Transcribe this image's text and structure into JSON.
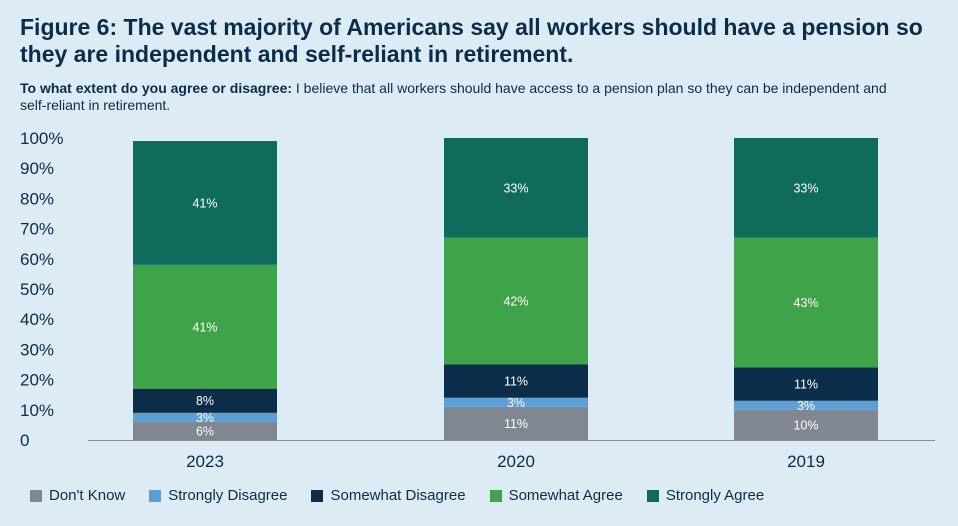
{
  "figure": {
    "label": "Figure 6:",
    "title": "The vast majority of Americans say all workers should have a pension so they are independent and self-reliant in retirement.",
    "question_lead": "To what extent do you agree or disagree:",
    "question": "I believe that all workers should have access to a pension plan so they can be independent and self-reliant in retirement."
  },
  "chart_data": {
    "type": "bar",
    "stacked": true,
    "categories": [
      "2023",
      "2020",
      "2019"
    ],
    "ylim": [
      0,
      100
    ],
    "yticks": [
      0,
      10,
      20,
      30,
      40,
      50,
      60,
      70,
      80,
      90,
      100
    ],
    "ytick_labels": [
      "0",
      "10%",
      "20%",
      "30%",
      "40%",
      "50%",
      "60%",
      "70%",
      "80%",
      "90%",
      "100%"
    ],
    "grid": false,
    "legend_position": "bottom",
    "series": [
      {
        "name": "Don't Know",
        "color": "#808791",
        "values": [
          6,
          11,
          10
        ],
        "labels": [
          "6%",
          "11%",
          "10%"
        ]
      },
      {
        "name": "Strongly Disagree",
        "color": "#5b9fd9",
        "values": [
          3,
          3,
          3
        ],
        "labels": [
          "3%",
          "3%",
          "3%"
        ]
      },
      {
        "name": "Somewhat Disagree",
        "color": "#0b2d4a",
        "values": [
          8,
          11,
          11
        ],
        "labels": [
          "8%",
          "11%",
          "11%"
        ]
      },
      {
        "name": "Somewhat Agree",
        "color": "#3fa349",
        "values": [
          41,
          42,
          43
        ],
        "labels": [
          "41%",
          "42%",
          "43%"
        ]
      },
      {
        "name": "Strongly Agree",
        "color": "#0f6b5c",
        "values": [
          41,
          33,
          33
        ],
        "labels": [
          "41%",
          "33%",
          "33%"
        ]
      }
    ]
  }
}
